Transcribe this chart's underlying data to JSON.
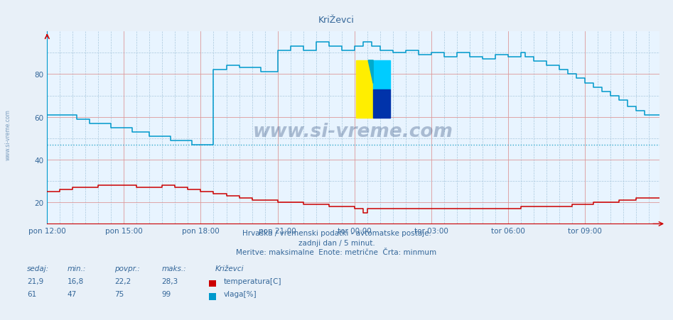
{
  "title": "KriŽevci",
  "background_color": "#e8f0f8",
  "plot_bg_color": "#e8f4ff",
  "below_plot_color": "#dde8f0",
  "grid_color_major": "#dd9999",
  "grid_color_minor": "#aac8dd",
  "text_color": "#336699",
  "subtitle1": "Hrvaška / vremenski podatki - avtomatske postaje.",
  "subtitle2": "zadnji dan / 5 minut.",
  "subtitle3": "Meritve: maksimalne  Enote: metrične  Črta: minmum",
  "xlabel_ticks": [
    "pon 12:00",
    "pon 15:00",
    "pon 18:00",
    "pon 21:00",
    "tor 00:00",
    "tor 03:00",
    "tor 06:00",
    "tor 09:00"
  ],
  "ylim": [
    10,
    100
  ],
  "xlim": [
    0,
    287
  ],
  "temp_color": "#cc0000",
  "humidity_color": "#0099cc",
  "avg_line_color": "#33aacc",
  "stats_temp": {
    "sedaj": "21,9",
    "min": "16,8",
    "povpr": "22,2",
    "maks": "28,3"
  },
  "stats_hum": {
    "sedaj": "61",
    "min": "47",
    "povpr": "75",
    "maks": "99"
  },
  "legend_title": "Križevci",
  "legend_temp": "temperatura[C]",
  "legend_hum": "vlaga[%]",
  "watermark": "www.si-vreme.com",
  "watermark_color": "#1a3a6c",
  "watermark_alpha": 0.3,
  "avg_hum_value": 47
}
